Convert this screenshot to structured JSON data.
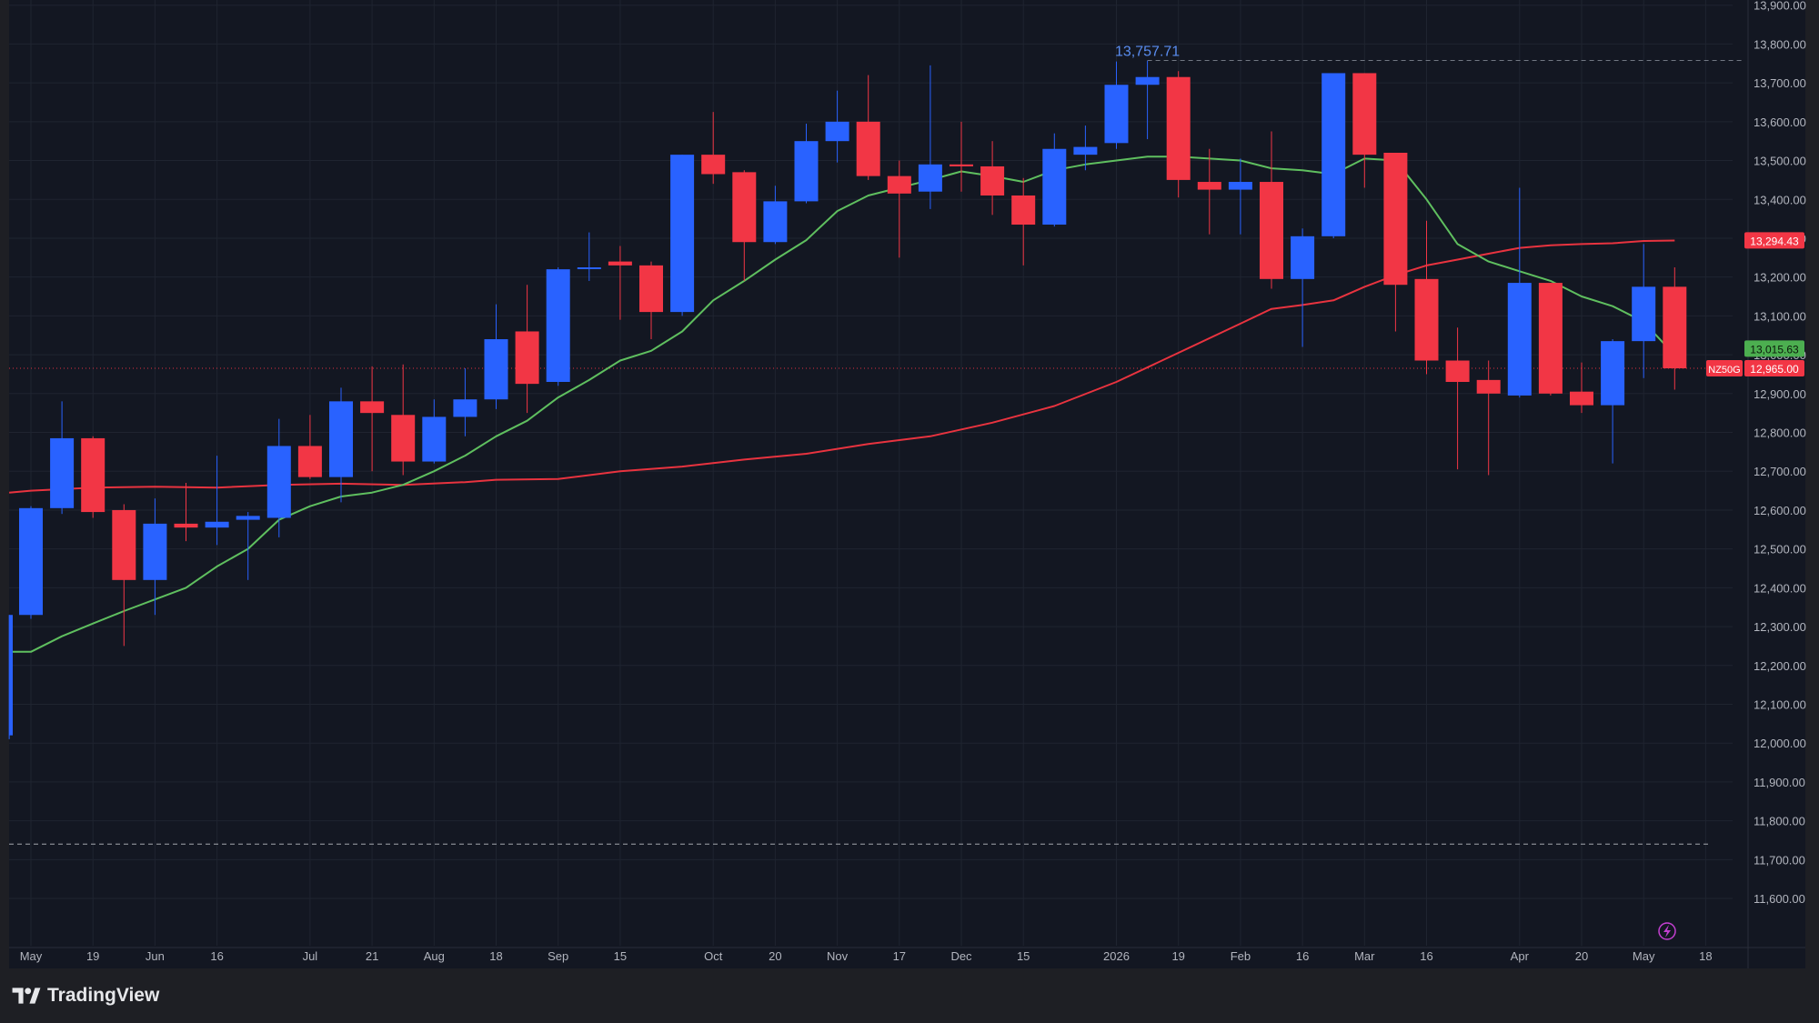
{
  "app": {
    "brand_name": "TradingView",
    "logo_icon": "tradingview-logo-icon"
  },
  "colors": {
    "background": "#131722",
    "up": "#2962ff",
    "down": "#f23645",
    "ma_fast": "#5fbf5f",
    "ma_slow": "#e8333f",
    "grid": "#1f2430",
    "axis_text": "#b2b5be"
  },
  "chart_data": {
    "type": "candlestick",
    "symbol": "NZ50G",
    "interval": "weekly",
    "ylim": [
      11550,
      13900
    ],
    "y_ticks": [
      11600,
      11700,
      11800,
      11900,
      12000,
      12100,
      12200,
      12300,
      12400,
      12500,
      12600,
      12700,
      12800,
      12900,
      13000,
      13100,
      13200,
      13300,
      13400,
      13500,
      13600,
      13700,
      13800,
      13900
    ],
    "x_tick_labels": [
      {
        "index": 0,
        "label": "May"
      },
      {
        "index": 2,
        "label": "19"
      },
      {
        "index": 4,
        "label": "Jun"
      },
      {
        "index": 6,
        "label": "16"
      },
      {
        "index": 9,
        "label": "Jul"
      },
      {
        "index": 11,
        "label": "21"
      },
      {
        "index": 13,
        "label": "Aug"
      },
      {
        "index": 15,
        "label": "18"
      },
      {
        "index": 17,
        "label": "Sep"
      },
      {
        "index": 19,
        "label": "15"
      },
      {
        "index": 22,
        "label": "Oct"
      },
      {
        "index": 24,
        "label": "20"
      },
      {
        "index": 26,
        "label": "Nov"
      },
      {
        "index": 28,
        "label": "17"
      },
      {
        "index": 30,
        "label": "Dec"
      },
      {
        "index": 32,
        "label": "15"
      },
      {
        "index": 35,
        "label": "2026"
      },
      {
        "index": 37,
        "label": "19"
      },
      {
        "index": 39,
        "label": "Feb"
      },
      {
        "index": 41,
        "label": "16"
      },
      {
        "index": 43,
        "label": "Mar"
      },
      {
        "index": 45,
        "label": "16"
      },
      {
        "index": 48,
        "label": "Apr"
      },
      {
        "index": 50,
        "label": "20"
      },
      {
        "index": 52,
        "label": "May"
      },
      {
        "index": 54,
        "label": "18"
      }
    ],
    "candles": [
      {
        "i": -0.7,
        "o": 12020,
        "h": 12330,
        "l": 12010,
        "c": 12330
      },
      {
        "i": 0,
        "o": 12330,
        "h": 12610,
        "l": 12320,
        "c": 12605
      },
      {
        "i": 1,
        "o": 12605,
        "h": 12880,
        "l": 12590,
        "c": 12785
      },
      {
        "i": 2,
        "o": 12785,
        "h": 12790,
        "l": 12580,
        "c": 12595
      },
      {
        "i": 3,
        "o": 12600,
        "h": 12615,
        "l": 12250,
        "c": 12420
      },
      {
        "i": 4,
        "o": 12420,
        "h": 12630,
        "l": 12330,
        "c": 12565
      },
      {
        "i": 5,
        "o": 12565,
        "h": 12670,
        "l": 12520,
        "c": 12555
      },
      {
        "i": 6,
        "o": 12555,
        "h": 12740,
        "l": 12510,
        "c": 12570
      },
      {
        "i": 7,
        "o": 12575,
        "h": 12595,
        "l": 12420,
        "c": 12585
      },
      {
        "i": 8,
        "o": 12580,
        "h": 12835,
        "l": 12530,
        "c": 12765
      },
      {
        "i": 9,
        "o": 12765,
        "h": 12845,
        "l": 12680,
        "c": 12685
      },
      {
        "i": 10,
        "o": 12685,
        "h": 12915,
        "l": 12620,
        "c": 12880
      },
      {
        "i": 11,
        "o": 12880,
        "h": 12970,
        "l": 12700,
        "c": 12850
      },
      {
        "i": 12,
        "o": 12845,
        "h": 12975,
        "l": 12690,
        "c": 12725
      },
      {
        "i": 13,
        "o": 12725,
        "h": 12885,
        "l": 12720,
        "c": 12840
      },
      {
        "i": 14,
        "o": 12840,
        "h": 12965,
        "l": 12790,
        "c": 12885
      },
      {
        "i": 15,
        "o": 12885,
        "h": 13130,
        "l": 12860,
        "c": 13040
      },
      {
        "i": 16,
        "o": 13060,
        "h": 13180,
        "l": 12850,
        "c": 12925
      },
      {
        "i": 17,
        "o": 12930,
        "h": 13225,
        "l": 12920,
        "c": 13220
      },
      {
        "i": 18,
        "o": 13225,
        "h": 13315,
        "l": 13190,
        "c": 13225
      },
      {
        "i": 19,
        "o": 13240,
        "h": 13280,
        "l": 13090,
        "c": 13230
      },
      {
        "i": 20,
        "o": 13230,
        "h": 13240,
        "l": 13040,
        "c": 13110
      },
      {
        "i": 21,
        "o": 13110,
        "h": 13515,
        "l": 13100,
        "c": 13515
      },
      {
        "i": 22,
        "o": 13515,
        "h": 13625,
        "l": 13440,
        "c": 13465
      },
      {
        "i": 23,
        "o": 13470,
        "h": 13475,
        "l": 13190,
        "c": 13290
      },
      {
        "i": 24,
        "o": 13290,
        "h": 13435,
        "l": 13285,
        "c": 13395
      },
      {
        "i": 25,
        "o": 13395,
        "h": 13595,
        "l": 13390,
        "c": 13550
      },
      {
        "i": 26,
        "o": 13550,
        "h": 13680,
        "l": 13495,
        "c": 13600
      },
      {
        "i": 27,
        "o": 13600,
        "h": 13720,
        "l": 13450,
        "c": 13460
      },
      {
        "i": 28,
        "o": 13460,
        "h": 13500,
        "l": 13250,
        "c": 13415
      },
      {
        "i": 29,
        "o": 13420,
        "h": 13745,
        "l": 13375,
        "c": 13490
      },
      {
        "i": 30,
        "o": 13490,
        "h": 13600,
        "l": 13420,
        "c": 13485
      },
      {
        "i": 31,
        "o": 13485,
        "h": 13550,
        "l": 13360,
        "c": 13410
      },
      {
        "i": 32,
        "o": 13410,
        "h": 13455,
        "l": 13230,
        "c": 13335
      },
      {
        "i": 33,
        "o": 13335,
        "h": 13570,
        "l": 13330,
        "c": 13530
      },
      {
        "i": 34,
        "o": 13515,
        "h": 13590,
        "l": 13475,
        "c": 13535
      },
      {
        "i": 35,
        "o": 13545,
        "h": 13755,
        "l": 13530,
        "c": 13695
      },
      {
        "i": 36,
        "o": 13695,
        "h": 13757,
        "l": 13555,
        "c": 13715
      },
      {
        "i": 37,
        "o": 13715,
        "h": 13730,
        "l": 13405,
        "c": 13450
      },
      {
        "i": 38,
        "o": 13445,
        "h": 13530,
        "l": 13310,
        "c": 13425
      },
      {
        "i": 39,
        "o": 13425,
        "h": 13505,
        "l": 13310,
        "c": 13445
      },
      {
        "i": 40,
        "o": 13445,
        "h": 13575,
        "l": 13170,
        "c": 13195
      },
      {
        "i": 41,
        "o": 13195,
        "h": 13325,
        "l": 13020,
        "c": 13305
      },
      {
        "i": 42,
        "o": 13305,
        "h": 13725,
        "l": 13300,
        "c": 13725
      },
      {
        "i": 43,
        "o": 13725,
        "h": 13725,
        "l": 13430,
        "c": 13515
      },
      {
        "i": 44,
        "o": 13520,
        "h": 13520,
        "l": 13060,
        "c": 13180
      },
      {
        "i": 45,
        "o": 13195,
        "h": 13345,
        "l": 12950,
        "c": 12985
      },
      {
        "i": 46,
        "o": 12985,
        "h": 13070,
        "l": 12705,
        "c": 12930
      },
      {
        "i": 47,
        "o": 12935,
        "h": 12985,
        "l": 12690,
        "c": 12900
      },
      {
        "i": 48,
        "o": 12895,
        "h": 13430,
        "l": 12890,
        "c": 13185
      },
      {
        "i": 49,
        "o": 13185,
        "h": 13185,
        "l": 12895,
        "c": 12900
      },
      {
        "i": 50,
        "o": 12905,
        "h": 12980,
        "l": 12850,
        "c": 12870
      },
      {
        "i": 51,
        "o": 12870,
        "h": 13040,
        "l": 12720,
        "c": 13035
      },
      {
        "i": 52,
        "o": 13035,
        "h": 13285,
        "l": 12940,
        "c": 13175
      },
      {
        "i": 53,
        "o": 13175,
        "h": 13225,
        "l": 12910,
        "c": 12965
      }
    ],
    "ma_fast": [
      [
        -0.7,
        12235
      ],
      [
        0,
        12235
      ],
      [
        1,
        12275
      ],
      [
        2,
        12308
      ],
      [
        3,
        12340
      ],
      [
        4,
        12370
      ],
      [
        5,
        12400
      ],
      [
        6,
        12455
      ],
      [
        7,
        12500
      ],
      [
        8,
        12575
      ],
      [
        9,
        12610
      ],
      [
        10,
        12635
      ],
      [
        11,
        12645
      ],
      [
        12,
        12665
      ],
      [
        13,
        12700
      ],
      [
        14,
        12740
      ],
      [
        15,
        12790
      ],
      [
        16,
        12830
      ],
      [
        17,
        12890
      ],
      [
        18,
        12935
      ],
      [
        19,
        12985
      ],
      [
        20,
        13010
      ],
      [
        21,
        13060
      ],
      [
        22,
        13140
      ],
      [
        23,
        13190
      ],
      [
        24,
        13245
      ],
      [
        25,
        13295
      ],
      [
        26,
        13370
      ],
      [
        27,
        13410
      ],
      [
        28,
        13430
      ],
      [
        29,
        13450
      ],
      [
        30,
        13472
      ],
      [
        31,
        13460
      ],
      [
        32,
        13445
      ],
      [
        33,
        13475
      ],
      [
        34,
        13490
      ],
      [
        35,
        13500
      ],
      [
        36,
        13510
      ],
      [
        37,
        13510
      ],
      [
        38,
        13505
      ],
      [
        39,
        13500
      ],
      [
        40,
        13480
      ],
      [
        41,
        13475
      ],
      [
        42,
        13465
      ],
      [
        43,
        13505
      ],
      [
        44,
        13500
      ],
      [
        45,
        13400
      ],
      [
        46,
        13285
      ],
      [
        47,
        13240
      ],
      [
        48,
        13215
      ],
      [
        49,
        13190
      ],
      [
        50,
        13150
      ],
      [
        51,
        13125
      ],
      [
        52,
        13085
      ],
      [
        52.8,
        13016
      ]
    ],
    "ma_slow": [
      [
        -0.7,
        12645
      ],
      [
        0,
        12650
      ],
      [
        2,
        12658
      ],
      [
        4,
        12660
      ],
      [
        6,
        12658
      ],
      [
        8,
        12665
      ],
      [
        10,
        12668
      ],
      [
        12,
        12665
      ],
      [
        14,
        12672
      ],
      [
        15,
        12678
      ],
      [
        17,
        12680
      ],
      [
        19,
        12700
      ],
      [
        21,
        12712
      ],
      [
        23,
        12730
      ],
      [
        25,
        12745
      ],
      [
        27,
        12770
      ],
      [
        29,
        12790
      ],
      [
        31,
        12825
      ],
      [
        33,
        12868
      ],
      [
        35,
        12930
      ],
      [
        37,
        13005
      ],
      [
        39,
        13080
      ],
      [
        40,
        13118
      ],
      [
        41,
        13128
      ],
      [
        42,
        13140
      ],
      [
        43,
        13175
      ],
      [
        44,
        13205
      ],
      [
        45,
        13230
      ],
      [
        46,
        13245
      ],
      [
        47,
        13260
      ],
      [
        48,
        13275
      ],
      [
        49,
        13282
      ],
      [
        50,
        13285
      ],
      [
        51,
        13287
      ],
      [
        52,
        13293
      ],
      [
        53,
        13294
      ]
    ],
    "annotations": {
      "high_label": "13,757.71",
      "high_value": 13757.71,
      "low_line_value": 11740,
      "current_price_value": 12965,
      "ma_fast_value": 13015.63,
      "ma_slow_value": 13294.43,
      "ma_fast_label": "13,015.63",
      "ma_slow_label": "13,294.43",
      "current_price_label": "12,965.00",
      "symbol_tag": "NZ50G"
    },
    "xlabel": "",
    "ylabel": "",
    "legend": "none",
    "grid": true
  }
}
